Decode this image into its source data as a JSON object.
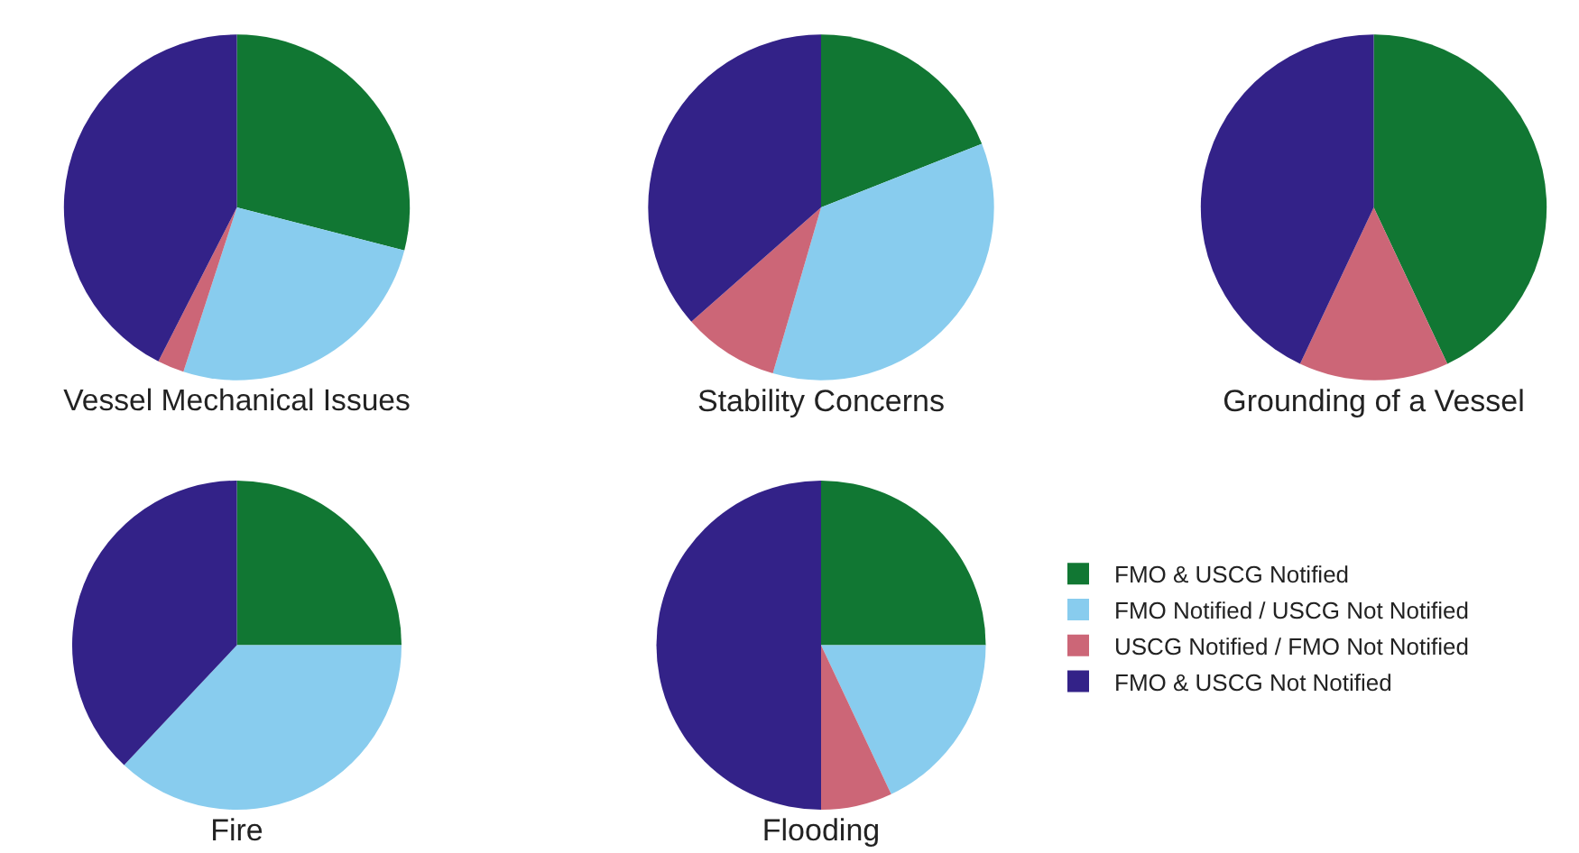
{
  "chart_data": [
    {
      "type": "pie",
      "title": "Vessel Mechanical Issues",
      "categories": [
        "FMO & USCG Notified",
        "FMO Notified / USCG Not Notified",
        "USCG Notified / FMO Not Notified",
        "FMO & USCG Not Notified"
      ],
      "values": [
        29,
        26,
        2.5,
        42.5
      ],
      "colors": [
        "#117733",
        "#88ccee",
        "#cc6677",
        "#332288"
      ],
      "legend": "bottom right"
    },
    {
      "type": "pie",
      "title": "Stability Concerns",
      "categories": [
        null,
        null,
        null,
        null
      ],
      "values": [
        19,
        35.5,
        9,
        36.5
      ],
      "colors": [
        "#117733",
        "#88ccee",
        "#cc6677",
        "#332288"
      ]
    },
    {
      "type": "pie",
      "title": "Grounding of a Vessel",
      "categories": [
        null,
        null,
        null,
        null
      ],
      "values": [
        43,
        0,
        14,
        43
      ],
      "colors": [
        "#117733",
        "#88ccee",
        "#cc6677",
        "#332288"
      ]
    },
    {
      "type": "pie",
      "title": "Fire",
      "categories": [
        null,
        null,
        null,
        null
      ],
      "values": [
        25,
        37,
        0,
        38
      ],
      "colors": [
        "#117733",
        "#88ccee",
        "#cc6677",
        "#332288"
      ]
    },
    {
      "type": "pie",
      "title": "Flooding",
      "categories": [
        null,
        null,
        null,
        null
      ],
      "values": [
        25,
        18,
        7,
        50
      ],
      "colors": [
        "#117733",
        "#88ccee",
        "#cc6677",
        "#332288"
      ]
    }
  ]
}
